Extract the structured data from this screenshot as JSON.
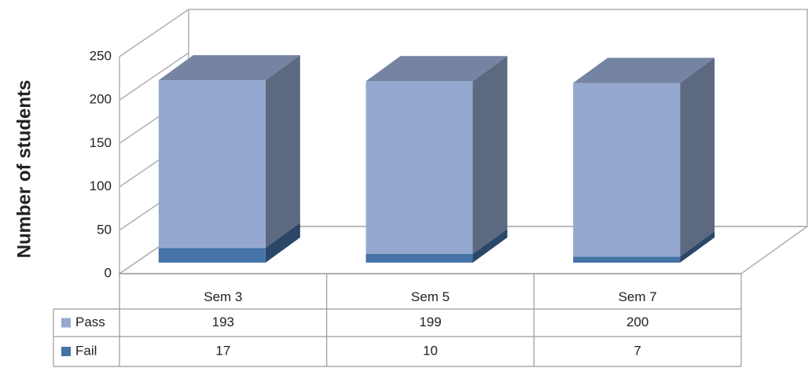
{
  "chart_data": {
    "type": "bar3d",
    "stacked": true,
    "y_label": "Number of students",
    "categories": [
      "Sem 3",
      "Sem 5",
      "Sem 7"
    ],
    "series": [
      {
        "name": "Pass",
        "color": "#95a9d0",
        "values": [
          193,
          199,
          200
        ]
      },
      {
        "name": "Fail",
        "color": "#4573a7",
        "values": [
          17,
          10,
          7
        ]
      }
    ],
    "ylim": [
      0,
      250
    ],
    "yticks": [
      0,
      50,
      100,
      150,
      200,
      250
    ],
    "grid": true,
    "data_table": true
  }
}
